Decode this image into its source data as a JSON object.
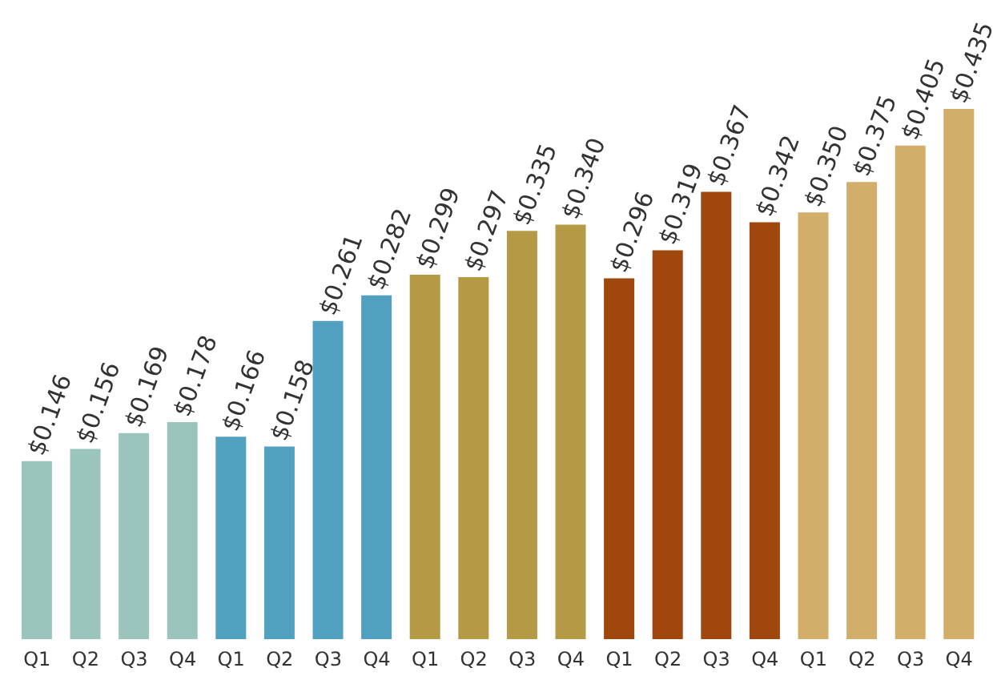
{
  "chart_data": {
    "type": "bar",
    "categories": [
      "Q1",
      "Q2",
      "Q3",
      "Q4",
      "Q1",
      "Q2",
      "Q3",
      "Q4",
      "Q1",
      "Q2",
      "Q3",
      "Q4",
      "Q1",
      "Q2",
      "Q3",
      "Q4",
      "Q1",
      "Q2",
      "Q3",
      "Q4"
    ],
    "values": [
      0.146,
      0.156,
      0.169,
      0.178,
      0.166,
      0.158,
      0.261,
      0.282,
      0.299,
      0.297,
      0.335,
      0.34,
      0.296,
      0.319,
      0.367,
      0.342,
      0.35,
      0.375,
      0.405,
      0.435
    ],
    "value_labels": [
      "$0.146",
      "$0.156",
      "$0.169",
      "$0.178",
      "$0.166",
      "$0.158",
      "$0.261",
      "$0.282",
      "$0.299",
      "$0.297",
      "$0.335",
      "$0.340",
      "$0.296",
      "$0.319",
      "$0.367",
      "$0.342",
      "$0.350",
      "$0.375",
      "$0.405",
      "$0.435"
    ],
    "colors": [
      "#9bc4bc",
      "#9bc4bc",
      "#9bc4bc",
      "#9bc4bc",
      "#52a0bf",
      "#52a0bf",
      "#52a0bf",
      "#52a0bf",
      "#b59a45",
      "#b59a45",
      "#b59a45",
      "#b59a45",
      "#a0470e",
      "#a0470e",
      "#a0470e",
      "#a0470e",
      "#d2ae6a",
      "#d2ae6a",
      "#d2ae6a",
      "#d2ae6a"
    ],
    "grid": false,
    "legend": false
  }
}
